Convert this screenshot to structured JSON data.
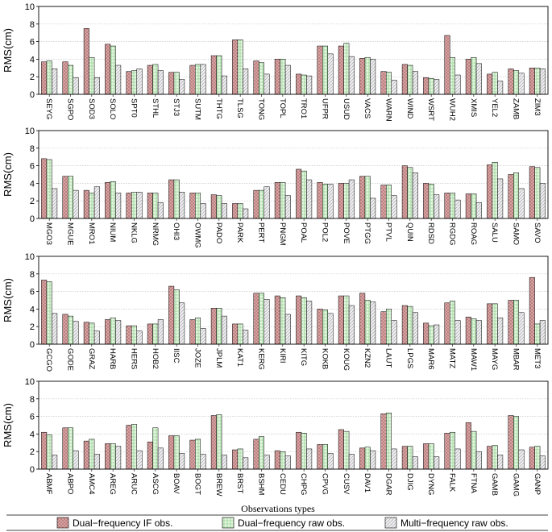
{
  "colors": {
    "if_fill": "#d9a9a9",
    "if_hatch": "#b06a6a",
    "dual_fill": "#e4f6e1",
    "dual_hatch": "#7fc97a",
    "multi_fill": "#eeeeee",
    "multi_hatch": "#9a9aa8",
    "grid": "#c8c8c8"
  },
  "legend": {
    "title": "Observations types",
    "items": [
      "Dual−frequency IF obs.",
      "Dual−frequency raw obs.",
      "Multi−frequency raw obs."
    ]
  },
  "chart_data": [
    {
      "type": "bar",
      "ylabel": "RMS(cm)",
      "ylim": [
        0,
        10
      ],
      "yticks": [
        "0",
        "2",
        "4",
        "6",
        "8",
        "10"
      ],
      "grid": true,
      "categories": [
        "SEYG",
        "SGPO",
        "SOD3",
        "SOLO",
        "SPT0",
        "STHL",
        "STJ3",
        "SUTM",
        "THTG",
        "TLSG",
        "TONG",
        "TOPL",
        "TRO1",
        "UFPR",
        "USUD",
        "VACS",
        "WARN",
        "WIND",
        "WSRT",
        "WUH2",
        "XMIS",
        "YEL2",
        "ZAMB",
        "ZIM3"
      ],
      "series": [
        {
          "name": "Dual−frequency IF obs.",
          "values": [
            3.7,
            3.7,
            7.5,
            5.7,
            2.6,
            3.3,
            2.5,
            3.3,
            4.4,
            6.2,
            3.8,
            4.0,
            2.3,
            5.5,
            5.5,
            4.1,
            2.6,
            3.4,
            1.9,
            6.7,
            4.0,
            2.3,
            2.9,
            3.0
          ]
        },
        {
          "name": "Dual−frequency raw obs.",
          "values": [
            3.8,
            3.3,
            4.2,
            5.5,
            2.7,
            3.4,
            2.5,
            3.4,
            4.4,
            6.2,
            3.6,
            4.0,
            2.2,
            5.5,
            5.8,
            4.2,
            2.5,
            3.3,
            1.8,
            4.2,
            4.2,
            2.5,
            2.7,
            3.0
          ]
        },
        {
          "name": "Multi−frequency raw obs.",
          "values": [
            2.9,
            1.9,
            1.9,
            3.3,
            2.9,
            2.7,
            1.7,
            3.4,
            2.1,
            2.9,
            2.3,
            3.3,
            2.1,
            4.6,
            4.3,
            4.0,
            1.6,
            2.6,
            1.7,
            2.2,
            3.5,
            1.5,
            2.4,
            2.9
          ]
        }
      ]
    },
    {
      "type": "bar",
      "ylabel": "RMS(cm)",
      "ylim": [
        0,
        10
      ],
      "yticks": [
        "0",
        "2",
        "4",
        "6",
        "8",
        "10"
      ],
      "grid": true,
      "categories": [
        "MGO3",
        "MGUE",
        "MRO1",
        "NIUM",
        "NKLG",
        "NRMG",
        "OHI3",
        "OWMG",
        "PADO",
        "PARK",
        "PERT",
        "PNGM",
        "POAL",
        "POL2",
        "POVE",
        "PTGG",
        "PTVL",
        "QUIN",
        "RDSD",
        "RGDG",
        "ROAG",
        "SALU",
        "SAMO",
        "SAVO"
      ],
      "series": [
        {
          "name": "Dual−frequency IF obs.",
          "values": [
            6.8,
            4.8,
            3.2,
            4.1,
            2.9,
            2.9,
            4.4,
            2.9,
            2.7,
            1.7,
            3.2,
            4.1,
            5.6,
            4.1,
            4.0,
            4.8,
            3.8,
            6.0,
            4.0,
            2.9,
            2.8,
            6.1,
            5.0,
            5.9
          ]
        },
        {
          "name": "Dual−frequency raw obs.",
          "values": [
            6.7,
            4.8,
            2.9,
            4.2,
            3.0,
            2.9,
            4.4,
            2.9,
            2.6,
            1.7,
            3.2,
            4.1,
            5.4,
            3.9,
            4.0,
            4.8,
            3.8,
            5.8,
            3.9,
            2.9,
            2.8,
            6.4,
            5.2,
            5.8
          ]
        },
        {
          "name": "Multi−frequency raw obs.",
          "values": [
            3.4,
            3.2,
            3.6,
            2.9,
            3.0,
            1.8,
            3.0,
            1.7,
            1.7,
            1.1,
            3.6,
            2.6,
            4.4,
            3.9,
            4.4,
            2.3,
            2.6,
            5.2,
            2.7,
            2.1,
            1.8,
            4.5,
            3.4,
            4.0
          ]
        }
      ]
    },
    {
      "type": "bar",
      "ylabel": "RMS(cm)",
      "ylim": [
        0,
        10
      ],
      "yticks": [
        "0",
        "2",
        "4",
        "6",
        "8",
        "10"
      ],
      "grid": true,
      "categories": [
        "GCGO",
        "GODE",
        "GRAZ",
        "HARB",
        "HERS",
        "HOB2",
        "IISC",
        "JOZE",
        "JPLM",
        "KAT1",
        "KERG",
        "KIRI",
        "KITG",
        "KOKB",
        "KOUG",
        "KZN2",
        "LAUT",
        "LPGS",
        "MAR6",
        "MATZ",
        "MAW1",
        "MAYG",
        "MBAR",
        "MET3"
      ],
      "series": [
        {
          "name": "Dual−frequency IF obs.",
          "values": [
            7.3,
            3.4,
            2.5,
            2.8,
            2.1,
            2.3,
            6.6,
            2.8,
            4.1,
            2.3,
            5.8,
            5.5,
            5.5,
            4.0,
            5.5,
            5.8,
            3.7,
            4.4,
            2.4,
            4.7,
            3.1,
            4.6,
            5.0,
            7.6
          ]
        },
        {
          "name": "Dual−frequency raw obs.",
          "values": [
            7.1,
            3.2,
            2.4,
            3.0,
            2.1,
            2.3,
            6.2,
            3.0,
            4.1,
            2.3,
            5.8,
            5.3,
            5.3,
            3.9,
            5.5,
            5.0,
            4.0,
            4.3,
            2.1,
            4.9,
            2.9,
            4.6,
            5.0,
            2.3
          ]
        },
        {
          "name": "Multi−frequency raw obs.",
          "values": [
            3.5,
            2.6,
            1.5,
            2.7,
            1.5,
            2.8,
            4.7,
            1.8,
            3.2,
            1.6,
            5.1,
            3.4,
            4.9,
            3.5,
            4.4,
            4.8,
            2.7,
            3.6,
            2.2,
            2.7,
            2.7,
            3.0,
            3.6,
            2.7
          ]
        }
      ]
    },
    {
      "type": "bar",
      "ylabel": "RMS(cm)",
      "ylim": [
        0,
        10
      ],
      "yticks": [
        "0",
        "2",
        "4",
        "6",
        "8",
        "10"
      ],
      "grid": true,
      "categories": [
        "ABMF",
        "ABPO",
        "AMC4",
        "AREG",
        "ARUC",
        "ASCG",
        "BOAV",
        "BOGT",
        "BREW",
        "BRST",
        "BSHM",
        "CEDU",
        "CHPG",
        "CPVG",
        "CUSV",
        "DAV1",
        "DGAR",
        "DJIG",
        "DYNG",
        "FALK",
        "FTNA",
        "GAMB",
        "GAMG",
        "GANP"
      ],
      "series": [
        {
          "name": "Dual−frequency IF obs.",
          "values": [
            4.2,
            4.7,
            3.2,
            2.9,
            5.0,
            3.1,
            3.8,
            3.3,
            6.1,
            2.2,
            3.4,
            2.1,
            4.2,
            2.8,
            4.5,
            2.4,
            6.3,
            2.6,
            2.9,
            4.1,
            5.3,
            2.6,
            6.1,
            2.5
          ]
        },
        {
          "name": "Dual−frequency raw obs.",
          "values": [
            3.9,
            4.7,
            3.4,
            2.9,
            5.1,
            4.7,
            3.8,
            3.4,
            6.2,
            2.3,
            3.7,
            2.0,
            4.1,
            2.8,
            4.3,
            2.5,
            6.4,
            2.6,
            2.9,
            4.2,
            4.3,
            2.7,
            6.0,
            2.6
          ]
        },
        {
          "name": "Multi−frequency raw obs.",
          "values": [
            1.6,
            2.1,
            1.7,
            2.6,
            2.1,
            2.4,
            1.8,
            1.7,
            1.6,
            1.3,
            1.6,
            1.5,
            2.3,
            1.8,
            1.7,
            2.1,
            2.3,
            1.4,
            1.4,
            2.3,
            2.0,
            1.6,
            2.2,
            1.5
          ]
        }
      ]
    }
  ]
}
